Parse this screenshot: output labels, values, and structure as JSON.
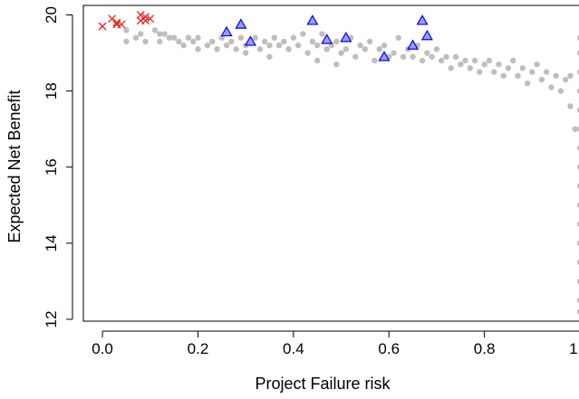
{
  "chart_data": {
    "type": "scatter",
    "title": "",
    "xlabel": "Project Failure risk",
    "ylabel": "Expected Net Benefit",
    "xlim": [
      -0.04,
      1.0
    ],
    "ylim": [
      11.95,
      20.25
    ],
    "xticks": [
      0.0,
      0.2,
      0.4,
      0.6,
      0.8,
      1.0
    ],
    "xtick_labels": [
      "0.0",
      "0.2",
      "0.4",
      "0.6",
      "0.8",
      "1.0"
    ],
    "yticks": [
      12,
      14,
      16,
      18,
      20
    ],
    "ytick_labels": [
      "12",
      "14",
      "16",
      "18",
      "20"
    ],
    "grid": false,
    "legend": "none",
    "series": [
      {
        "marker": "filled-circle",
        "color": "#bebebe",
        "points": [
          [
            0.05,
            19.6
          ],
          [
            0.05,
            19.3
          ],
          [
            0.07,
            19.4
          ],
          [
            0.08,
            19.5
          ],
          [
            0.09,
            19.3
          ],
          [
            0.11,
            19.6
          ],
          [
            0.12,
            19.5
          ],
          [
            0.12,
            19.3
          ],
          [
            0.13,
            19.5
          ],
          [
            0.14,
            19.4
          ],
          [
            0.15,
            19.4
          ],
          [
            0.16,
            19.3
          ],
          [
            0.17,
            19.2
          ],
          [
            0.18,
            19.4
          ],
          [
            0.19,
            19.3
          ],
          [
            0.2,
            19.1
          ],
          [
            0.2,
            19.4
          ],
          [
            0.22,
            19.2
          ],
          [
            0.23,
            19.3
          ],
          [
            0.24,
            19.1
          ],
          [
            0.25,
            19.4
          ],
          [
            0.26,
            19.2
          ],
          [
            0.27,
            19.3
          ],
          [
            0.28,
            19.1
          ],
          [
            0.29,
            19.4
          ],
          [
            0.3,
            19.2
          ],
          [
            0.3,
            19.0
          ],
          [
            0.31,
            19.3
          ],
          [
            0.32,
            19.4
          ],
          [
            0.33,
            19.1
          ],
          [
            0.34,
            19.3
          ],
          [
            0.35,
            19.2
          ],
          [
            0.35,
            18.9
          ],
          [
            0.36,
            19.4
          ],
          [
            0.37,
            19.2
          ],
          [
            0.38,
            19.3
          ],
          [
            0.39,
            19.1
          ],
          [
            0.4,
            19.4
          ],
          [
            0.41,
            19.2
          ],
          [
            0.42,
            19.5
          ],
          [
            0.43,
            19.0
          ],
          [
            0.44,
            19.3
          ],
          [
            0.45,
            19.2
          ],
          [
            0.45,
            18.8
          ],
          [
            0.46,
            19.5
          ],
          [
            0.47,
            19.1
          ],
          [
            0.48,
            19.2
          ],
          [
            0.49,
            19.3
          ],
          [
            0.49,
            18.7
          ],
          [
            0.5,
            19.0
          ],
          [
            0.51,
            19.1
          ],
          [
            0.52,
            19.4
          ],
          [
            0.53,
            18.9
          ],
          [
            0.54,
            19.2
          ],
          [
            0.55,
            19.1
          ],
          [
            0.56,
            19.3
          ],
          [
            0.57,
            18.8
          ],
          [
            0.58,
            19.1
          ],
          [
            0.59,
            19.2
          ],
          [
            0.6,
            18.9
          ],
          [
            0.61,
            19.0
          ],
          [
            0.62,
            19.4
          ],
          [
            0.63,
            18.9
          ],
          [
            0.64,
            19.1
          ],
          [
            0.65,
            18.9
          ],
          [
            0.66,
            19.2
          ],
          [
            0.67,
            18.8
          ],
          [
            0.68,
            19.0
          ],
          [
            0.69,
            18.9
          ],
          [
            0.7,
            19.1
          ],
          [
            0.71,
            18.8
          ],
          [
            0.72,
            18.9
          ],
          [
            0.73,
            18.6
          ],
          [
            0.74,
            18.9
          ],
          [
            0.75,
            18.7
          ],
          [
            0.76,
            18.8
          ],
          [
            0.77,
            18.6
          ],
          [
            0.78,
            18.8
          ],
          [
            0.79,
            18.5
          ],
          [
            0.8,
            18.7
          ],
          [
            0.81,
            18.8
          ],
          [
            0.82,
            18.5
          ],
          [
            0.83,
            18.7
          ],
          [
            0.84,
            18.4
          ],
          [
            0.85,
            18.6
          ],
          [
            0.86,
            18.8
          ],
          [
            0.87,
            18.4
          ],
          [
            0.88,
            18.6
          ],
          [
            0.89,
            18.2
          ],
          [
            0.9,
            18.5
          ],
          [
            0.91,
            18.7
          ],
          [
            0.92,
            18.3
          ],
          [
            0.93,
            18.5
          ],
          [
            0.94,
            18.1
          ],
          [
            0.95,
            18.4
          ],
          [
            0.96,
            18.0
          ],
          [
            0.97,
            18.3
          ],
          [
            0.98,
            17.6
          ],
          [
            0.98,
            18.4
          ],
          [
            0.99,
            17.0
          ],
          [
            1.0,
            19.4
          ],
          [
            1.0,
            19.0
          ],
          [
            1.0,
            18.5
          ],
          [
            1.0,
            18.0
          ],
          [
            1.0,
            17.5
          ],
          [
            1.0,
            17.0
          ],
          [
            1.0,
            16.5
          ],
          [
            1.0,
            16.0
          ],
          [
            1.0,
            15.5
          ],
          [
            1.0,
            15.0
          ],
          [
            1.0,
            14.5
          ],
          [
            1.0,
            14.0
          ],
          [
            1.0,
            13.5
          ],
          [
            1.0,
            13.0
          ],
          [
            1.0,
            12.5
          ],
          [
            1.0,
            12.2
          ]
        ]
      },
      {
        "marker": "x",
        "color": "#e8231f",
        "points": [
          [
            0.0,
            19.7
          ],
          [
            0.02,
            19.9
          ],
          [
            0.03,
            19.75
          ],
          [
            0.03,
            19.8
          ],
          [
            0.04,
            19.75
          ],
          [
            0.08,
            20.0
          ],
          [
            0.08,
            19.85
          ],
          [
            0.09,
            19.95
          ],
          [
            0.09,
            19.85
          ],
          [
            0.1,
            19.9
          ]
        ]
      },
      {
        "marker": "open-triangle",
        "color": "#0000ff",
        "fill": "#9aa0ff",
        "points": [
          [
            0.26,
            19.55
          ],
          [
            0.29,
            19.75
          ],
          [
            0.31,
            19.3
          ],
          [
            0.44,
            19.85
          ],
          [
            0.47,
            19.35
          ],
          [
            0.51,
            19.4
          ],
          [
            0.59,
            18.9
          ],
          [
            0.65,
            19.2
          ],
          [
            0.67,
            19.85
          ],
          [
            0.68,
            19.45
          ]
        ]
      }
    ]
  }
}
